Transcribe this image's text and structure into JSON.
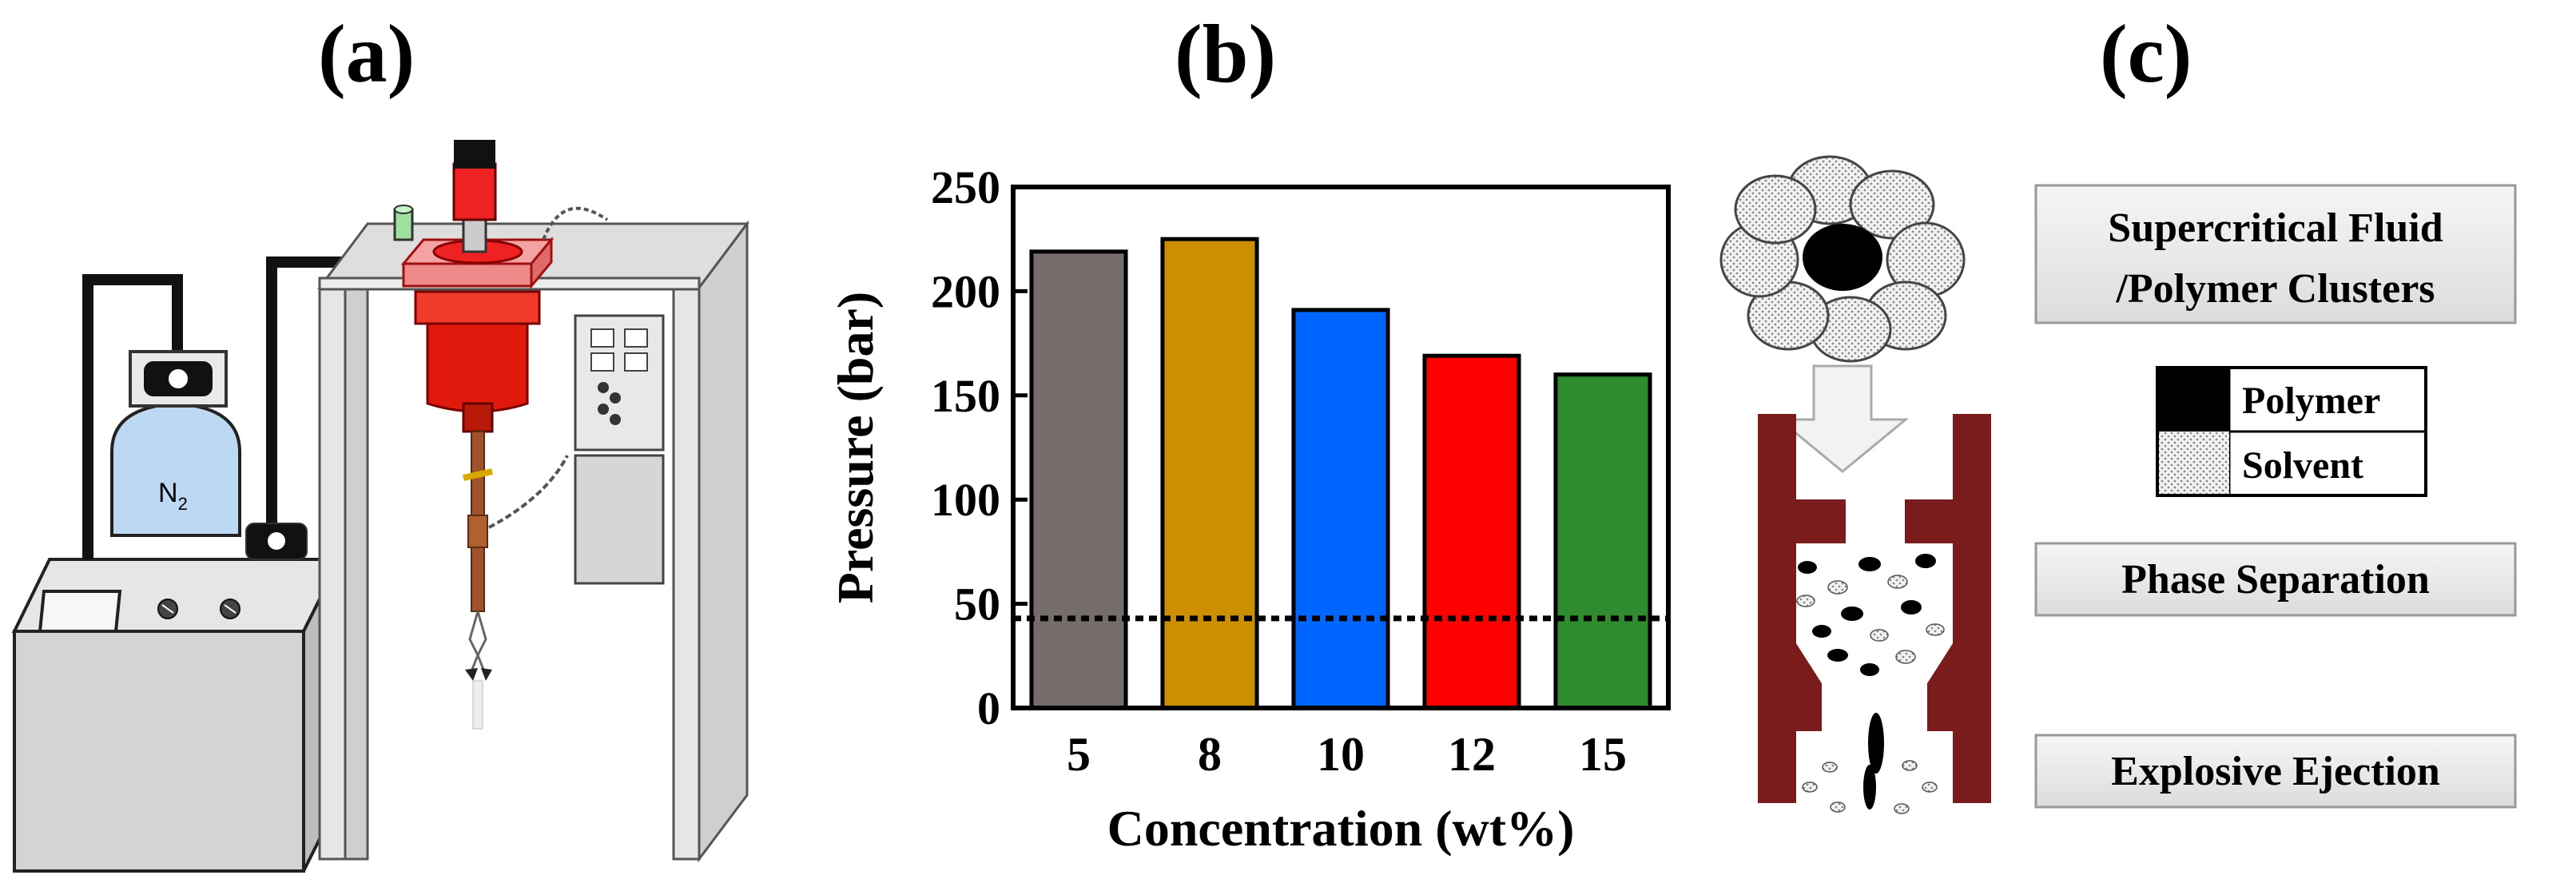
{
  "panels": {
    "a": {
      "label": "(a)",
      "gas_label": "N",
      "gas_subscript": "2"
    },
    "b": {
      "label": "(b)"
    },
    "c": {
      "label": "(c)",
      "box_clusters_line1": "Supercritical Fluid",
      "box_clusters_line2": "/Polymer Clusters",
      "legend_polymer": "Polymer",
      "legend_solvent": "Solvent",
      "box_phase": "Phase Separation",
      "box_ejection": "Explosive Ejection"
    }
  },
  "colors": {
    "bar_5": "#756d6a",
    "bar_8": "#cc8f00",
    "bar_10": "#0066ff",
    "bar_12": "#ff0000",
    "bar_15": "#2e8b2e",
    "nozzle": "#7b1c1c",
    "vessel": "#e0190c"
  },
  "chart_data": {
    "type": "bar",
    "categories": [
      "5",
      "8",
      "10",
      "12",
      "15"
    ],
    "values": [
      219,
      225,
      191,
      169,
      160
    ],
    "xlabel": "Concentration (wt%)",
    "ylabel": "Pressure (bar)",
    "ylim": [
      0,
      250
    ],
    "yticks": [
      0,
      50,
      100,
      150,
      200,
      250
    ],
    "reference_line": 43,
    "reference_line_style": "dotted"
  }
}
